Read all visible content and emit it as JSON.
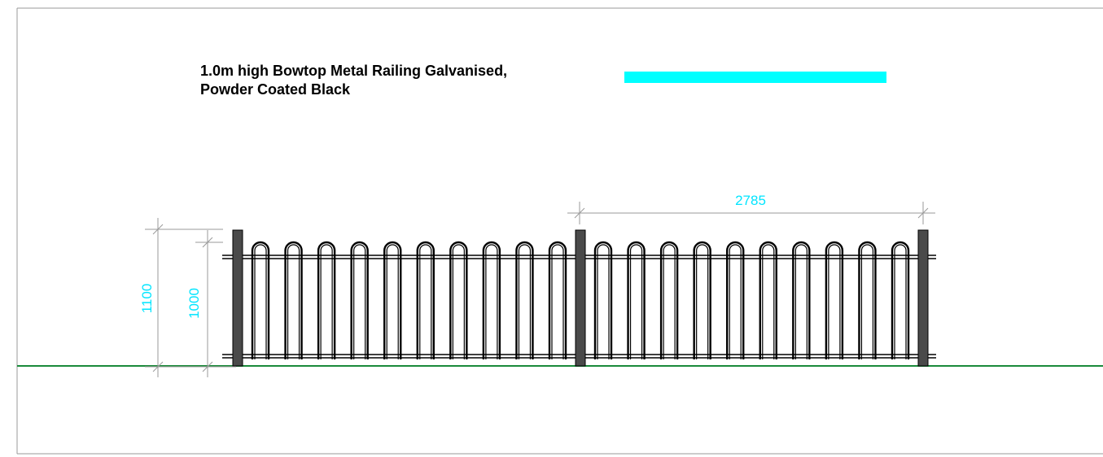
{
  "drawing": {
    "title_line_1": "1.0m high Bowtop Metal Railing Galvanised,",
    "title_line_2": "Powder Coated Black",
    "legend_color": "#00ffff",
    "frame_color": "#9a9a9a",
    "ground_color": "#1a8a3a",
    "railing_color": "#000000",
    "post_color": "#4a4a4a",
    "dimension_color": "#00e5ff",
    "dimension_line_color": "#9a9a9a"
  },
  "dimensions": {
    "overall_height": "1100",
    "railing_height": "1000",
    "panel_length": "2785"
  },
  "railing": {
    "panels": 2,
    "bows_per_panel": 10,
    "posts": 3
  }
}
